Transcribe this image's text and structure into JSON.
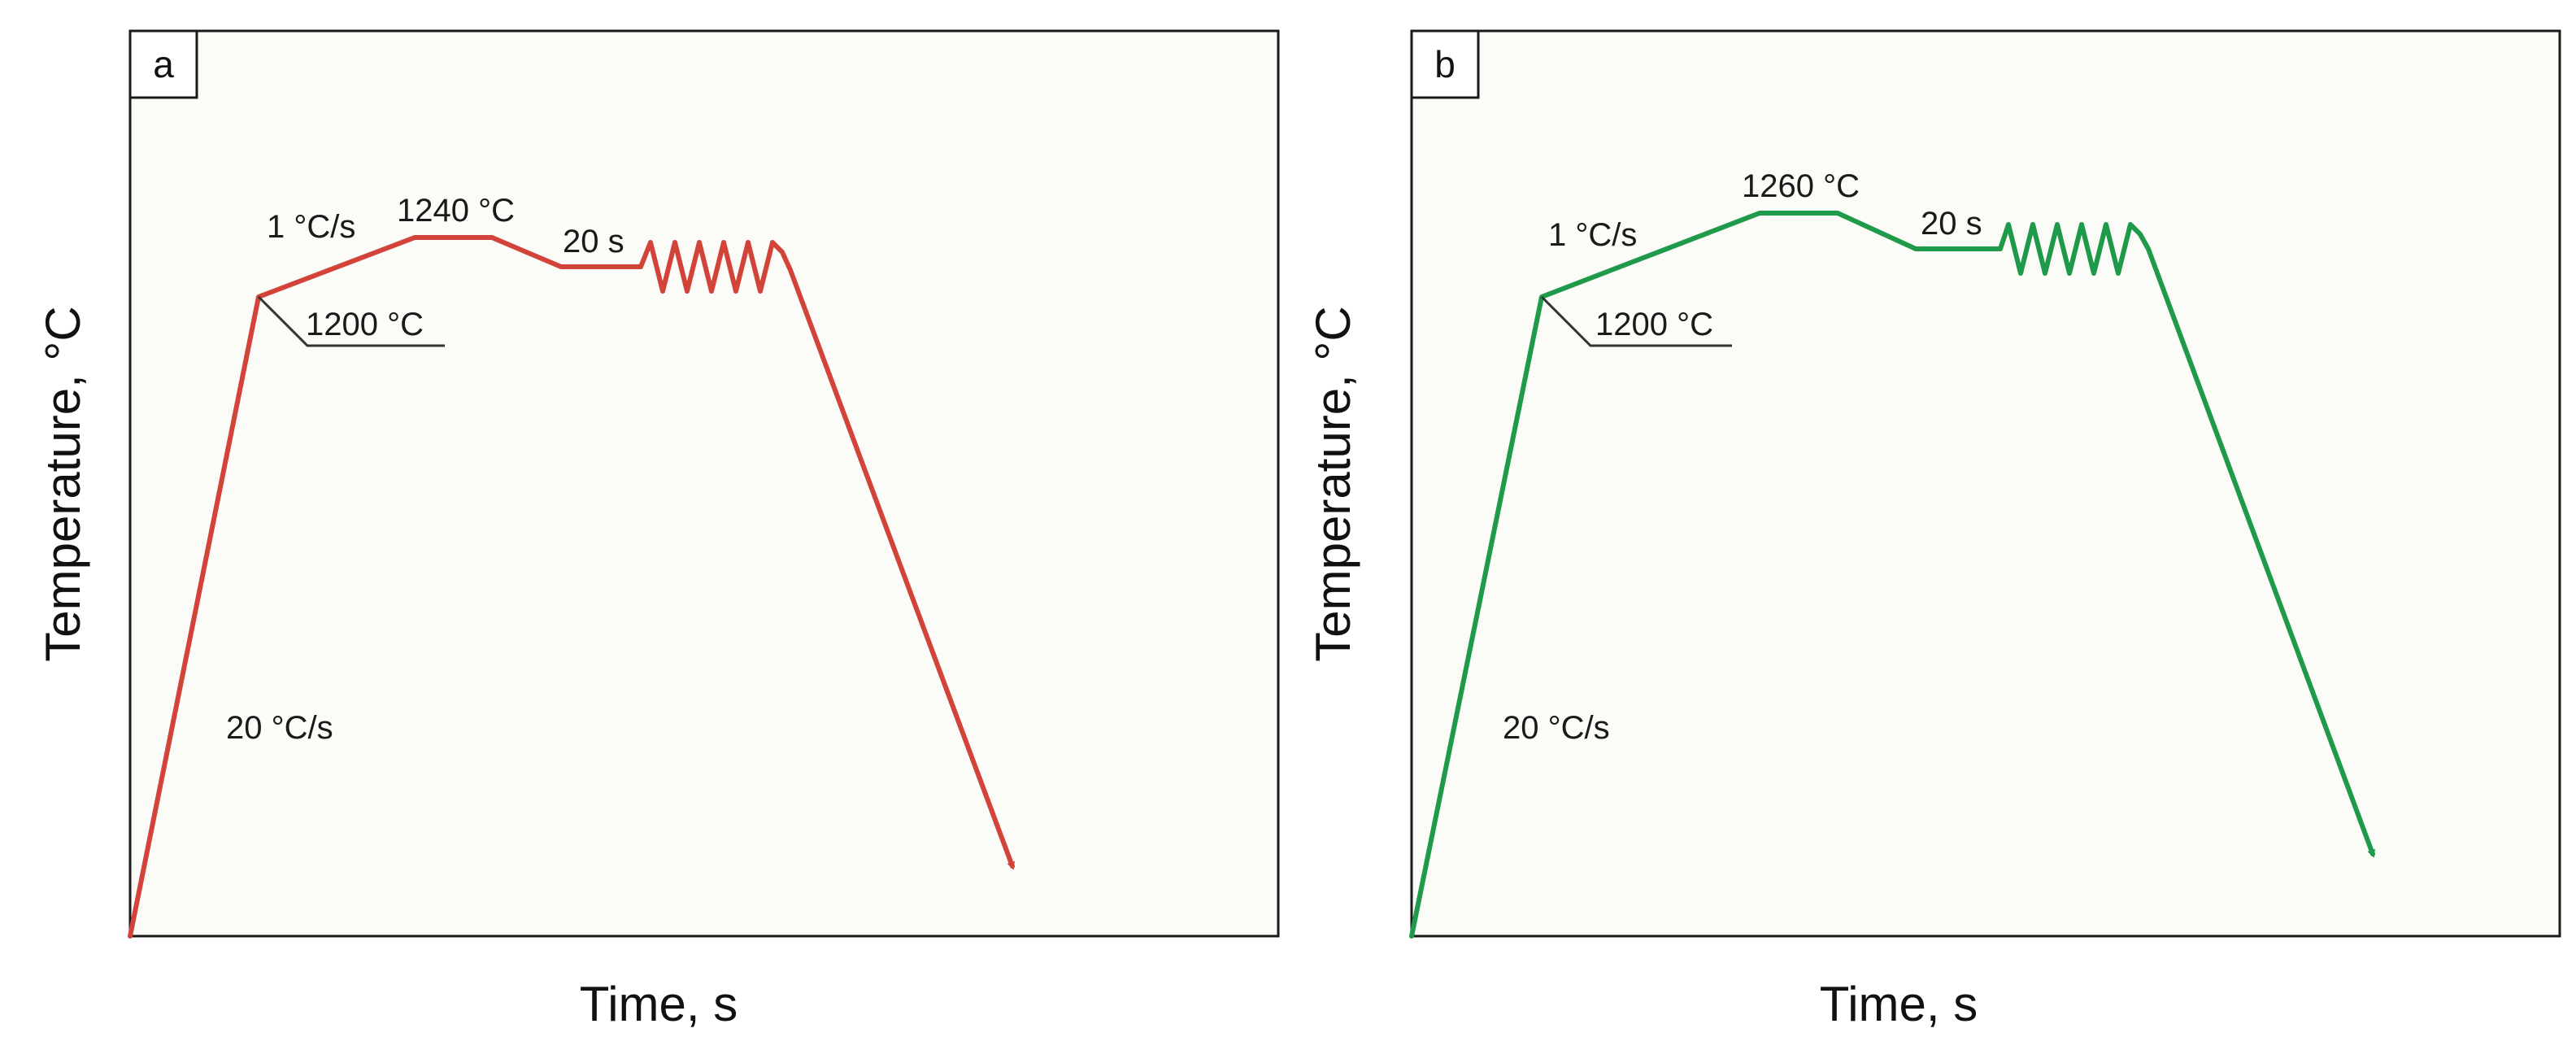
{
  "panels": [
    {
      "label": "a",
      "color": "#d2443a",
      "xlabel": "Time, s",
      "ylabel": "Temperature, °C",
      "annotations": {
        "heating_rate_fast": "20 °C/s",
        "intermediate_temp": "1200 °C",
        "heating_rate_slow": "1 °C/s",
        "peak_temp": "1240 °C",
        "hold_time": "20 s"
      }
    },
    {
      "label": "b",
      "color": "#1e9a4a",
      "xlabel": "Time, s",
      "ylabel": "Temperature, °C",
      "annotations": {
        "heating_rate_fast": "20 °C/s",
        "intermediate_temp": "1200 °C",
        "heating_rate_slow": "1 °C/s",
        "peak_temp": "1260 °C",
        "hold_time": "20 s"
      }
    }
  ]
}
